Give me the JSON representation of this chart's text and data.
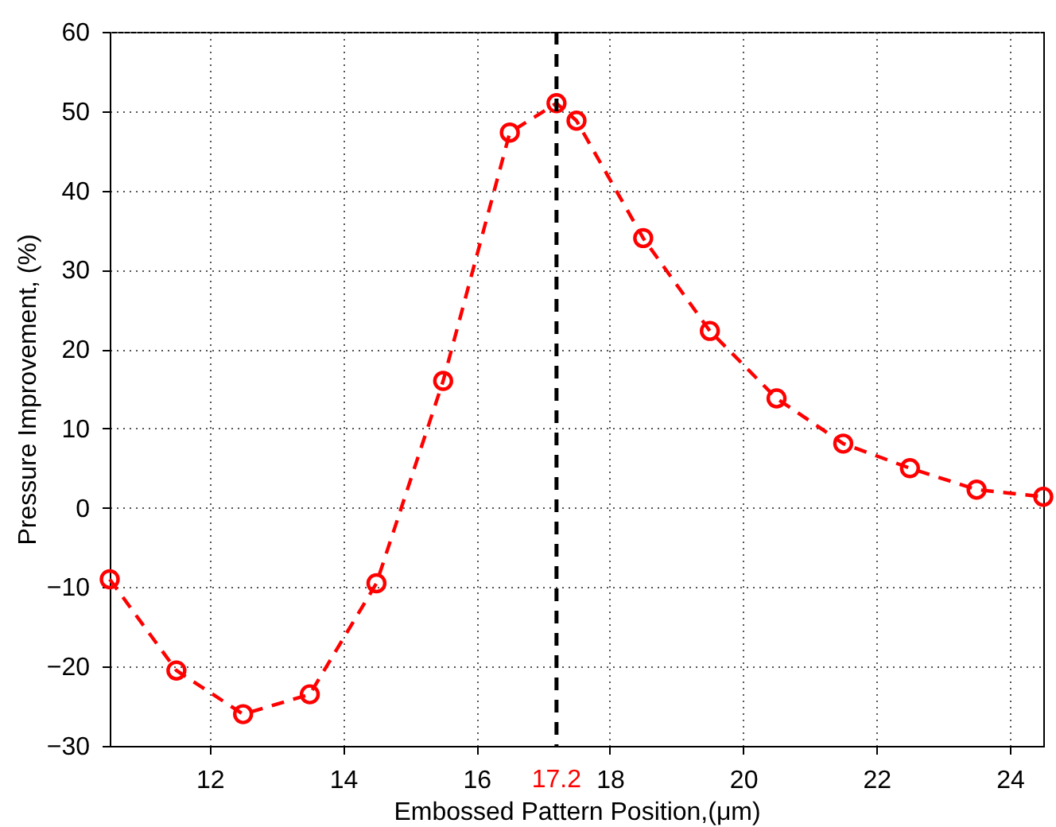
{
  "chart_data": {
    "type": "line",
    "xlabel": "Embossed Pattern Position,(μm)",
    "ylabel": "Pressure Improvement, (%)",
    "x": [
      10.5,
      11.5,
      12.5,
      13.5,
      14.5,
      15.5,
      16.5,
      17.2,
      17.5,
      18.5,
      19.5,
      20.5,
      21.5,
      22.5,
      23.5,
      24.5
    ],
    "series": [
      {
        "color": "#ff0000",
        "values": [
          -9,
          -20.5,
          -26,
          -23.5,
          -9.5,
          16,
          47.3,
          51,
          48.8,
          34,
          22.3,
          13.8,
          8.1,
          5,
          2.3,
          1.4
        ]
      }
    ],
    "xlim": [
      10.5,
      24.5
    ],
    "xticks": [
      12,
      14,
      16,
      18,
      20,
      22,
      24
    ],
    "ylim": [
      -30,
      60
    ],
    "yticks": [
      -30,
      -20,
      -10,
      0,
      10,
      20,
      30,
      40,
      50,
      60
    ],
    "ref_lines": [
      {
        "axis": "x",
        "value": 17.2,
        "label": "17.2",
        "color": "#000000",
        "line_style": "dashed"
      }
    ],
    "grid": true,
    "marker": "circle",
    "line_style": "dashed"
  }
}
